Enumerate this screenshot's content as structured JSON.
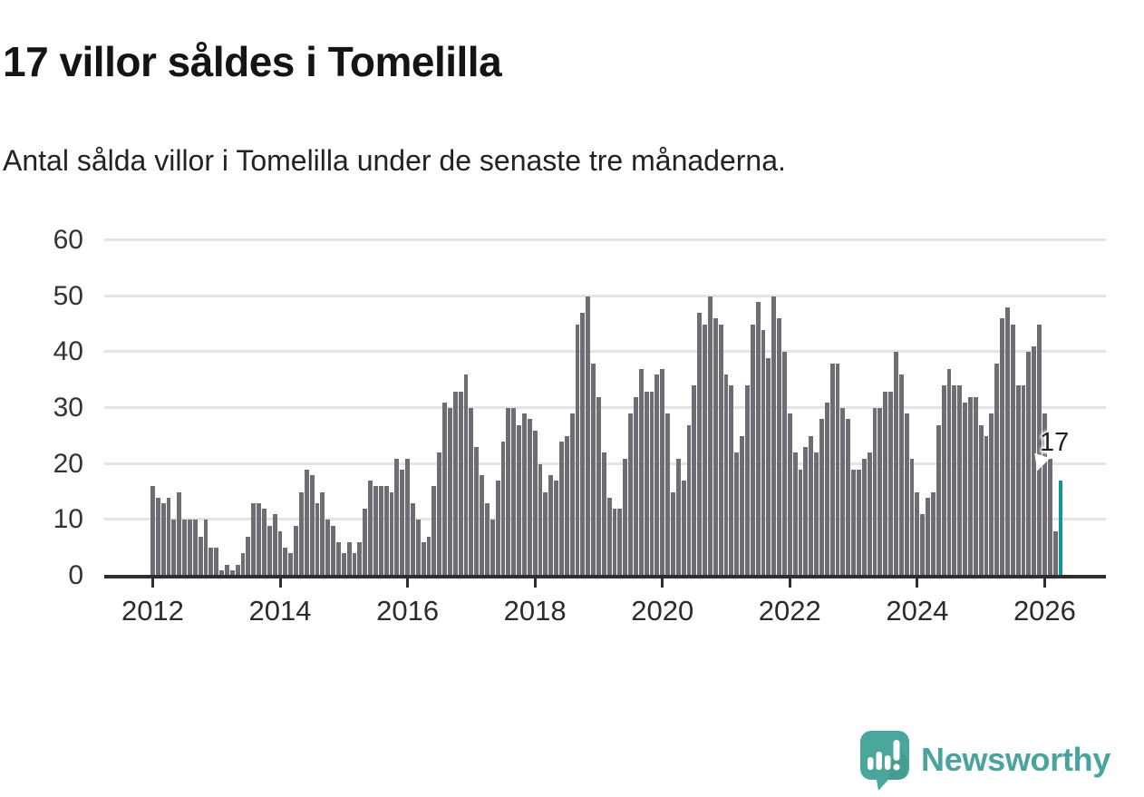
{
  "title": "17 villor såldes i Tomelilla",
  "subtitle": "Antal sålda villor i Tomelilla under de senaste tre månaderna.",
  "annotation": {
    "last_value_label": "17"
  },
  "branding": {
    "name": "Newsworthy",
    "logo_icon": "speech-bubble-bar-chart-exclamation"
  },
  "colors": {
    "bar": "#6d6d73",
    "highlight": "#0d9a94",
    "logo_teal": "#4ba69b",
    "gridline": "#e4e4e4",
    "axis": "#2f2f33",
    "text": "#222222"
  },
  "chart_data": {
    "type": "bar",
    "title": "17 villor såldes i Tomelilla",
    "subtitle": "Antal sålda villor i Tomelilla under de senaste tre månaderna.",
    "unit": "sålda villor (rullande 3 månader)",
    "frequency": "monthly",
    "x_start": "2012-01",
    "x_end": "2026-04",
    "ylim": [
      0,
      60
    ],
    "y_ticks": [
      0,
      10,
      20,
      30,
      40,
      50,
      60
    ],
    "x_tick_labels": [
      "2012",
      "2014",
      "2016",
      "2018",
      "2020",
      "2022",
      "2024",
      "2026"
    ],
    "x_tick_bar_indices": [
      0,
      24,
      48,
      72,
      96,
      120,
      144,
      168
    ],
    "grid": true,
    "legend": false,
    "highlight_last_bar": true,
    "last_value": 17,
    "values": [
      16,
      14,
      13,
      14,
      10,
      15,
      10,
      10,
      10,
      7,
      10,
      5,
      5,
      1,
      2,
      1,
      2,
      4,
      7,
      13,
      13,
      12,
      9,
      11,
      8,
      5,
      4,
      9,
      15,
      19,
      18,
      13,
      15,
      10,
      9,
      6,
      4,
      6,
      4,
      6,
      12,
      17,
      16,
      16,
      16,
      15,
      21,
      19,
      21,
      13,
      10,
      6,
      7,
      16,
      22,
      31,
      30,
      33,
      33,
      36,
      30,
      23,
      18,
      13,
      10,
      17,
      24,
      30,
      30,
      27,
      29,
      28,
      26,
      20,
      15,
      18,
      17,
      24,
      25,
      29,
      45,
      47,
      50,
      38,
      32,
      22,
      14,
      12,
      12,
      21,
      29,
      32,
      37,
      33,
      33,
      36,
      37,
      29,
      15,
      21,
      17,
      27,
      34,
      47,
      45,
      50,
      46,
      45,
      36,
      34,
      22,
      25,
      34,
      45,
      49,
      44,
      39,
      50,
      46,
      40,
      29,
      22,
      19,
      23,
      25,
      22,
      28,
      31,
      38,
      38,
      30,
      28,
      19,
      19,
      21,
      22,
      30,
      30,
      33,
      33,
      40,
      36,
      29,
      21,
      15,
      11,
      14,
      15,
      27,
      34,
      37,
      34,
      34,
      31,
      32,
      32,
      27,
      25,
      29,
      38,
      46,
      48,
      45,
      34,
      34,
      40,
      41,
      45,
      29,
      21,
      8,
      17
    ]
  }
}
